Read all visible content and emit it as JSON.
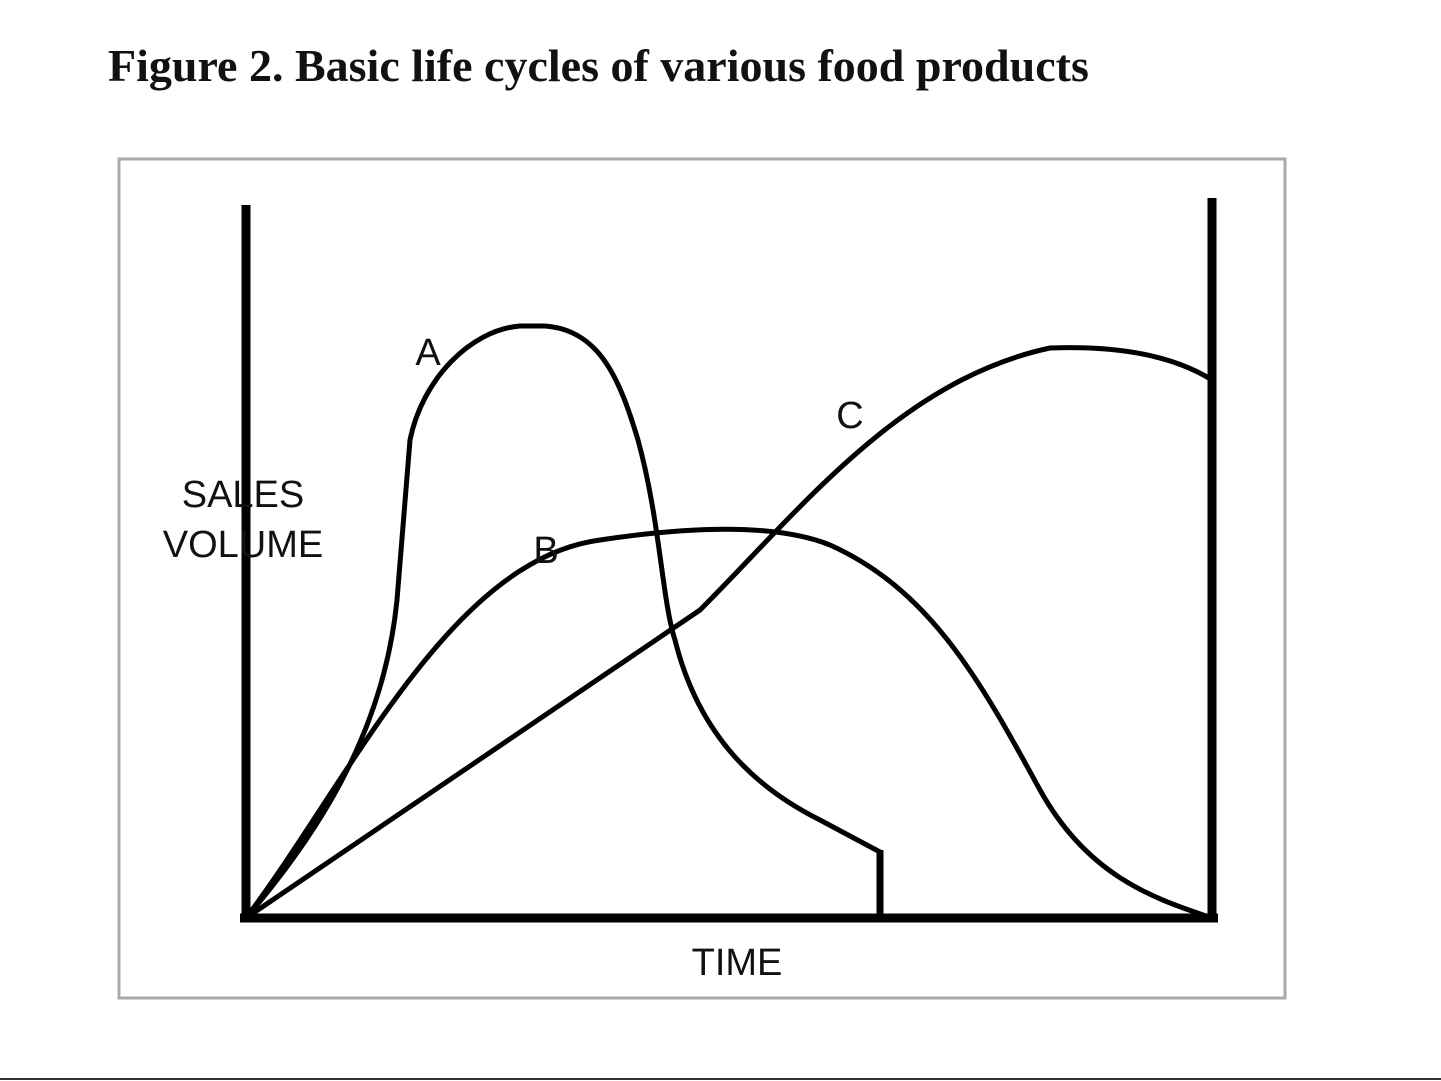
{
  "figure": {
    "title": "Figure 2. Basic life cycles of various food products",
    "y_label": "SALES VOLUME",
    "x_label": "TIME",
    "curves": [
      {
        "label": "A"
      },
      {
        "label": "B"
      },
      {
        "label": "C"
      }
    ]
  }
}
